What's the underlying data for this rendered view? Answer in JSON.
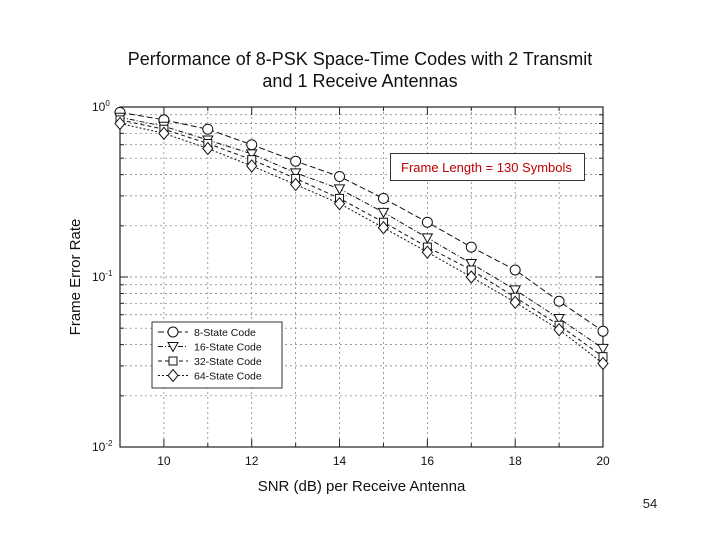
{
  "page": {
    "number": "54"
  },
  "chart_data": {
    "type": "line",
    "title": "Performance of 8-PSK Space-Time Codes with 2 Transmit and 1 Receive Antennas",
    "title_lines": [
      "Performance of 8-PSK Space-Time Codes with 2 Transmit",
      "and 1 Receive Antennas"
    ],
    "xlabel": "SNR (dB) per Receive Antenna",
    "ylabel": "Frame Error Rate",
    "xlim": [
      9,
      20
    ],
    "ylim": [
      0.01,
      1
    ],
    "yscale": "log",
    "x_ticks": [
      10,
      12,
      14,
      16,
      18,
      20
    ],
    "x_tick_labels": [
      "10",
      "12",
      "14",
      "16",
      "18",
      "20"
    ],
    "y_ticks": [
      1,
      0.1,
      0.01
    ],
    "y_tick_labels": [
      {
        "base": "10",
        "exp": "0"
      },
      {
        "base": "10",
        "exp": "-1"
      },
      {
        "base": "10",
        "exp": "-2"
      }
    ],
    "annotation": "Frame Length = 130 Symbols",
    "legend_position": "lower-left",
    "x": [
      9,
      10,
      11,
      12,
      13,
      14,
      15,
      16,
      17,
      18,
      19,
      20
    ],
    "series": [
      {
        "name": "8-State Code",
        "marker": "circle",
        "values": [
          0.93,
          0.84,
          0.74,
          0.6,
          0.48,
          0.39,
          0.29,
          0.21,
          0.15,
          0.11,
          0.072,
          0.048
        ]
      },
      {
        "name": "16-State Code",
        "marker": "triangle-down",
        "values": [
          0.87,
          0.77,
          0.64,
          0.53,
          0.41,
          0.33,
          0.24,
          0.17,
          0.12,
          0.084,
          0.057,
          0.038
        ]
      },
      {
        "name": "32-State Code",
        "marker": "square",
        "values": [
          0.84,
          0.74,
          0.61,
          0.49,
          0.38,
          0.29,
          0.21,
          0.15,
          0.11,
          0.076,
          0.052,
          0.034
        ]
      },
      {
        "name": "64-State Code",
        "marker": "diamond",
        "values": [
          0.8,
          0.7,
          0.57,
          0.45,
          0.35,
          0.27,
          0.195,
          0.14,
          0.1,
          0.071,
          0.049,
          0.031
        ]
      }
    ]
  }
}
